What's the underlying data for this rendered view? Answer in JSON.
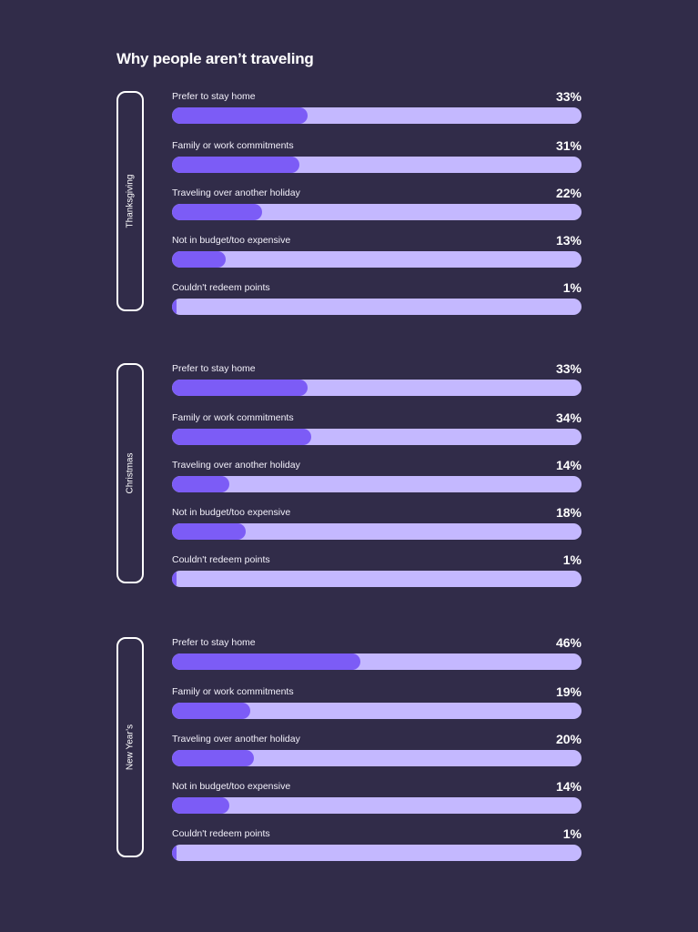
{
  "title": "Why people aren’t traveling",
  "colors": {
    "background": "#312c49",
    "track": "#c4b8ff",
    "fill": "#7c5cf6",
    "text": "#ffffff"
  },
  "chart_data": {
    "type": "bar",
    "orientation": "horizontal",
    "title": "Why people aren’t traveling",
    "xlim": [
      0,
      100
    ],
    "categories": [
      "Prefer to stay home",
      "Family or work commitments",
      "Traveling over another holiday",
      "Not in budget/too expensive",
      "Couldn't redeem points"
    ],
    "groups": [
      {
        "name": "Thanksgiving",
        "values": [
          33,
          31,
          22,
          13,
          1
        ],
        "labels": [
          "33%",
          "31%",
          "22%",
          "13%",
          "1%"
        ]
      },
      {
        "name": "Christmas",
        "values": [
          33,
          34,
          14,
          18,
          1
        ],
        "labels": [
          "33%",
          "34%",
          "14%",
          "18%",
          "1%"
        ]
      },
      {
        "name": "New Year’s",
        "values": [
          46,
          19,
          20,
          14,
          1
        ],
        "labels": [
          "46%",
          "19%",
          "20%",
          "14%",
          "1%"
        ]
      }
    ]
  }
}
